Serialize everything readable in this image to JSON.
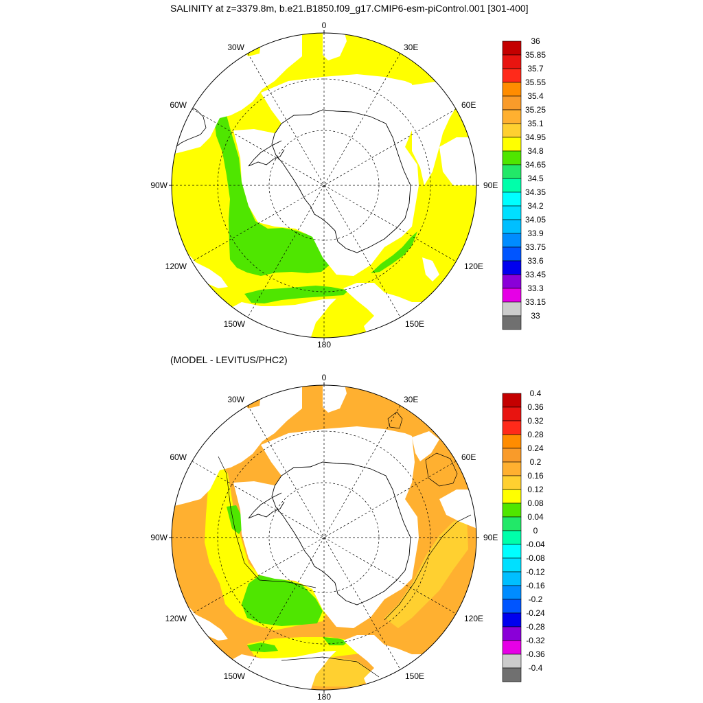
{
  "title": "SALINITY at z=3379.8m, b.e21.B1850.f09_g17.CMIP6-esm-piControl.001 [301-400]",
  "subtitle": "(MODEL - LEVITUS/PHC2)",
  "longitude_labels": {
    "top": "0",
    "bottom": "180",
    "left": "90W",
    "right": "90E",
    "nw": "30W",
    "ne": "30E",
    "wnw": "60W",
    "ene": "60E",
    "wsw": "120W",
    "ese": "120E",
    "ssw": "150W",
    "sse": "150E"
  },
  "colors": {
    "land": "#ffffff",
    "coast": "#000000",
    "grid": "#000000"
  },
  "chart_data": [
    {
      "type": "heatmap",
      "name": "salinity",
      "projection": "south-polar-stereographic",
      "title": "SALINITY at z=3379.8m, b.e21.B1850.f09_g17.CMIP6-esm-piControl.001 [301-400]",
      "colorbar": {
        "levels": [
          "36",
          "35.85",
          "35.7",
          "35.55",
          "35.4",
          "35.25",
          "35.1",
          "34.95",
          "34.8",
          "34.65",
          "34.5",
          "34.35",
          "34.2",
          "34.05",
          "33.9",
          "33.75",
          "33.6",
          "33.45",
          "33.3",
          "33.15",
          "33"
        ],
        "colors": [
          "#c40000",
          "#e81410",
          "#ff2a1a",
          "#ff8c00",
          "#f99b2a",
          "#ffb030",
          "#ffd030",
          "#ffff00",
          "#4fe600",
          "#22e868",
          "#00ffaa",
          "#00ffff",
          "#00e0ff",
          "#00bfff",
          "#008cff",
          "#0055ff",
          "#0000ee",
          "#8a00d8",
          "#e600e6",
          "#cccccc",
          "#707070"
        ]
      },
      "dominant_values": {
        "open_ocean": "34.8-34.95 (yellow)",
        "pacific_sector_deep_water": "34.65-34.8 (green)"
      }
    },
    {
      "type": "heatmap",
      "name": "salinity-difference",
      "projection": "south-polar-stereographic",
      "title": "(MODEL - LEVITUS/PHC2)",
      "colorbar": {
        "levels": [
          "0.4",
          "0.36",
          "0.32",
          "0.28",
          "0.24",
          "0.2",
          "0.16",
          "0.12",
          "0.08",
          "0.04",
          "0",
          "-0.04",
          "-0.08",
          "-0.12",
          "-0.16",
          "-0.2",
          "-0.24",
          "-0.28",
          "-0.32",
          "-0.36",
          "-0.4"
        ],
        "colors": [
          "#c40000",
          "#e81410",
          "#ff2a1a",
          "#ff8c00",
          "#f99b2a",
          "#ffb030",
          "#ffd030",
          "#ffff00",
          "#4fe600",
          "#22e868",
          "#00ffaa",
          "#00ffff",
          "#00e0ff",
          "#00bfff",
          "#008cff",
          "#0055ff",
          "#0000ee",
          "#8a00d8",
          "#e600e6",
          "#cccccc",
          "#707070"
        ]
      },
      "dominant_values": {
        "atlantic_indian_sector": "0.16-0.2 (orange)",
        "pacific_sector": "0.08-0.12 (yellow)",
        "ross_amundsen": "0.04-0.08 (green)"
      }
    }
  ]
}
